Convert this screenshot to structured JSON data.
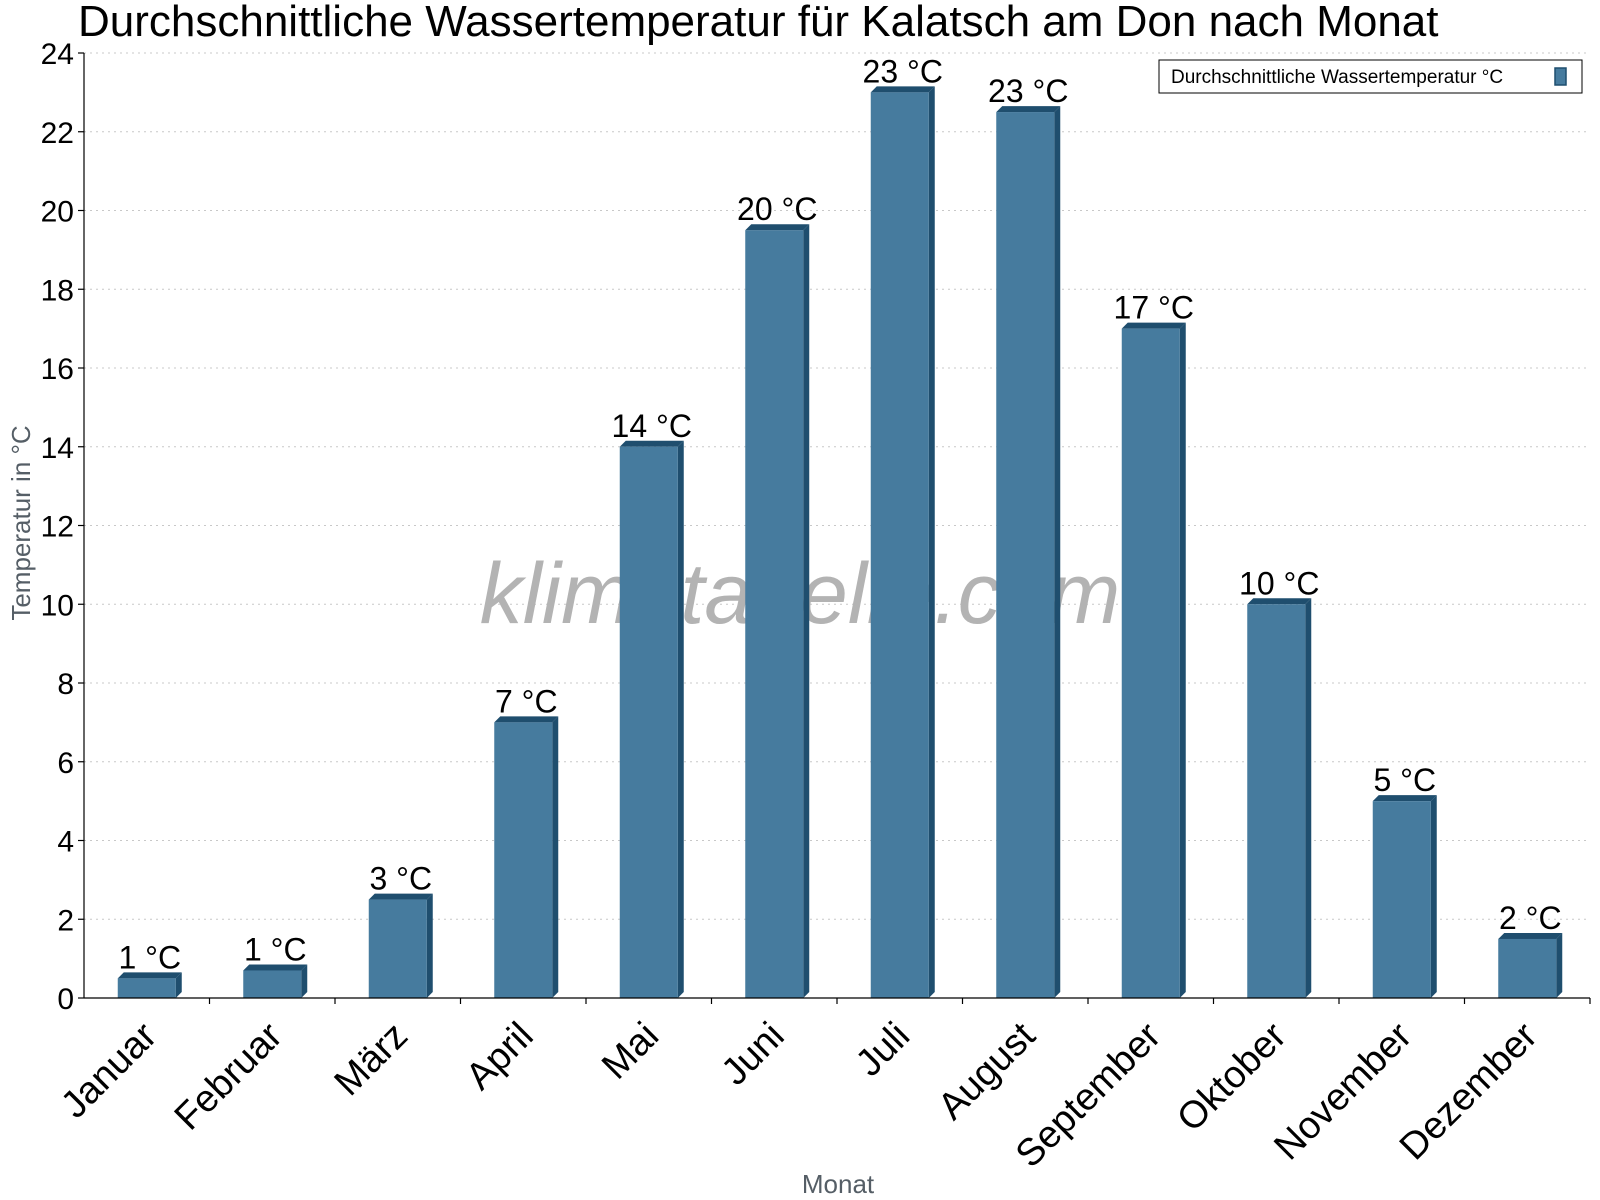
{
  "chart_data": {
    "type": "bar",
    "title": "Durchschnittliche Wassertemperatur für Kalatsch am Don nach Monat",
    "xlabel": "Monat",
    "ylabel": "Temperatur in °C",
    "ylim": [
      0,
      24
    ],
    "ytick_step": 2,
    "grid": true,
    "legend_position": "top-right",
    "watermark": "klimatabelle.com",
    "categories": [
      "Januar",
      "Februar",
      "März",
      "April",
      "Mai",
      "Juni",
      "Juli",
      "August",
      "September",
      "Oktober",
      "November",
      "Dezember"
    ],
    "series": [
      {
        "name": "Durchschnittliche Wassertemperatur °C",
        "color": "#467b9e",
        "values": [
          0.5,
          0.7,
          2.5,
          7.0,
          14.0,
          19.5,
          23.0,
          22.5,
          17.0,
          10.0,
          5.0,
          1.5
        ],
        "labels": [
          "1 °C",
          "1 °C",
          "3 °C",
          "7 °C",
          "14 °C",
          "20 °C",
          "23 °C",
          "23 °C",
          "17 °C",
          "10 °C",
          "5 °C",
          "2 °C"
        ]
      }
    ]
  }
}
